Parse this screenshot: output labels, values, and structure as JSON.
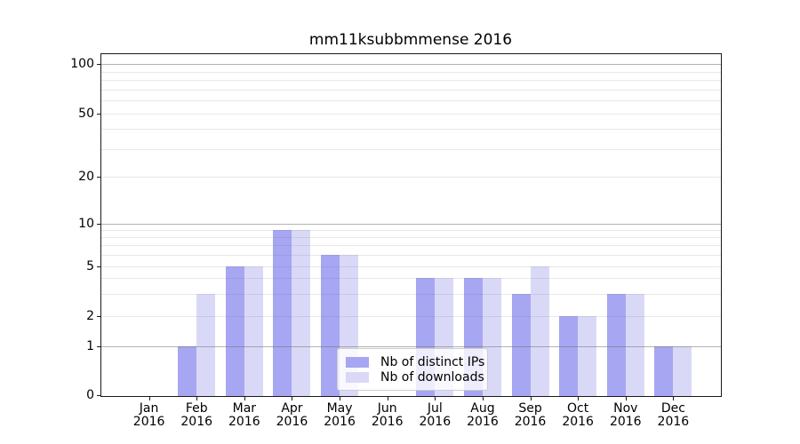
{
  "chart_data": {
    "type": "bar",
    "title": "mm11ksubbmmense 2016",
    "categories": [
      "Jan",
      "Feb",
      "Mar",
      "Apr",
      "May",
      "Jun",
      "Jul",
      "Aug",
      "Sep",
      "Oct",
      "Nov",
      "Dec"
    ],
    "x_year": "2016",
    "series": [
      {
        "name": "Nb of distinct IPs",
        "color": "#a6a6f2",
        "values": [
          0,
          1,
          5,
          9,
          6,
          0,
          4,
          4,
          3,
          2,
          3,
          1
        ]
      },
      {
        "name": "Nb of downloads",
        "color": "#d9d9f7",
        "values": [
          0,
          3,
          5,
          9,
          6,
          0,
          4,
          4,
          5,
          2,
          3,
          1
        ]
      }
    ],
    "y_ticks": [
      0,
      1,
      2,
      5,
      10,
      20,
      50,
      100
    ],
    "y_scale": "symlog",
    "ylim": [
      0,
      115
    ],
    "xlabel": "",
    "ylabel": "",
    "grid": true,
    "legend_position": "lower-center"
  }
}
